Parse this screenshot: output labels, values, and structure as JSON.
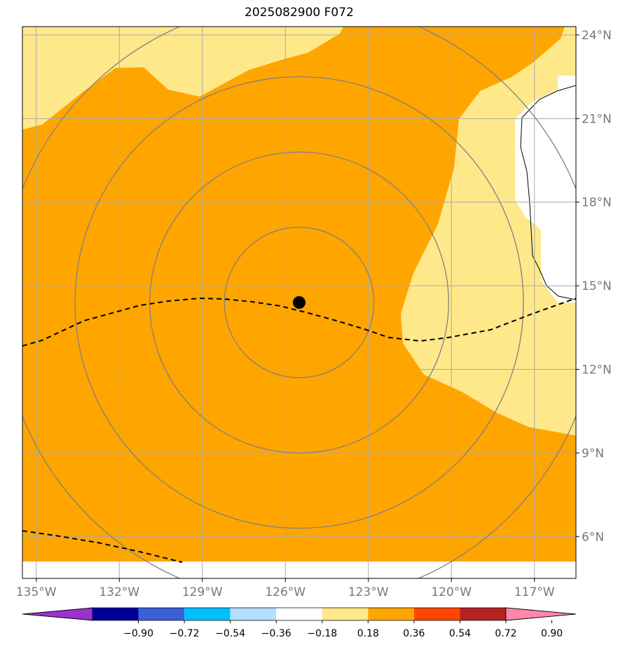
{
  "title": "2025082900 F072",
  "map": {
    "lon_range": [
      -135.5,
      -115.5
    ],
    "lat_range": [
      4.5,
      24.3
    ],
    "lon_ticks": [
      {
        "value": -135,
        "label": "135°W"
      },
      {
        "value": -132,
        "label": "132°W"
      },
      {
        "value": -129,
        "label": "129°W"
      },
      {
        "value": -126,
        "label": "126°W"
      },
      {
        "value": -123,
        "label": "123°W"
      },
      {
        "value": -120,
        "label": "120°W"
      },
      {
        "value": -117,
        "label": "117°W"
      }
    ],
    "lat_ticks": [
      {
        "value": 6,
        "label": "6°N"
      },
      {
        "value": 9,
        "label": "9°N"
      },
      {
        "value": 12,
        "label": "12°N"
      },
      {
        "value": 15,
        "label": "15°N"
      },
      {
        "value": 18,
        "label": "18°N"
      },
      {
        "value": 21,
        "label": "21°N"
      },
      {
        "value": 24,
        "label": "24°N"
      }
    ],
    "storm_center": {
      "lon": -125.5,
      "lat": 14.4
    },
    "range_rings_deg": [
      2.7,
      5.4,
      8.1,
      10.8
    ],
    "colors": {
      "background_band": "#ffa500",
      "light_band": "#ffe88a",
      "land": "#ffffff",
      "grid": "#aaaaaa",
      "rings": "#808080"
    }
  },
  "colorbar": {
    "colors": [
      "#9933cc",
      "#000099",
      "#3b5fd6",
      "#00bfff",
      "#b3e0ff",
      "#ffffff",
      "#ffe88a",
      "#ffa500",
      "#ff4500",
      "#b22222",
      "#ff88aa"
    ],
    "labels": [
      "−0.90",
      "−0.72",
      "−0.54",
      "−0.36",
      "−0.18",
      "0.18",
      "0.36",
      "0.54",
      "0.72",
      "0.90"
    ]
  }
}
